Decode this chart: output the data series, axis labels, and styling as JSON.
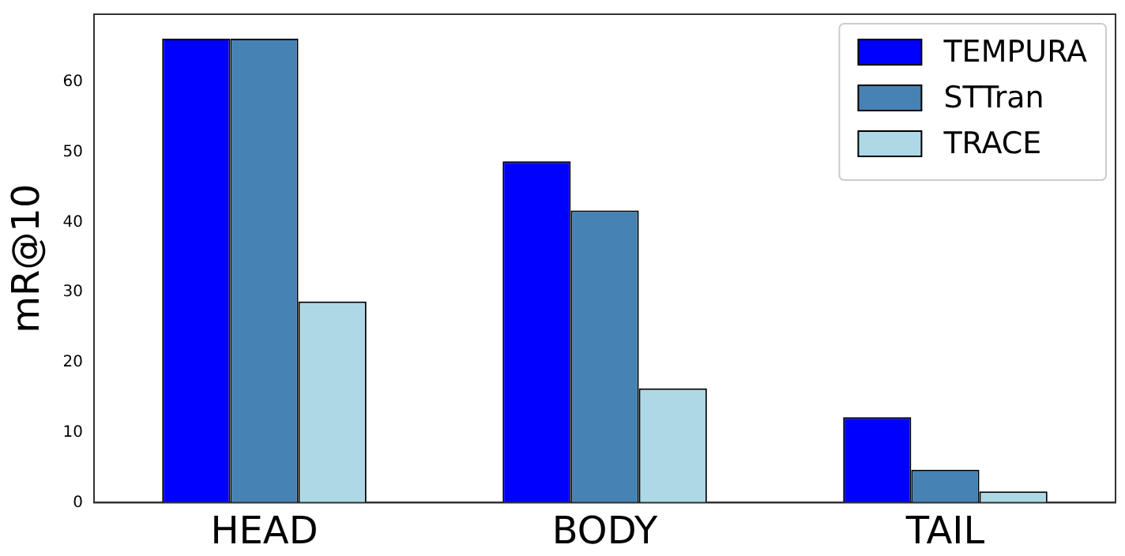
{
  "chart_data": {
    "type": "bar",
    "ylabel": "mR@10",
    "categories": [
      "HEAD",
      "BODY",
      "TAIL"
    ],
    "series": [
      {
        "name": "TEMPURA",
        "color": "#0000ff",
        "values": [
          66.2,
          48.7,
          12.2
        ]
      },
      {
        "name": "STTran",
        "color": "#4682b4",
        "values": [
          66.2,
          41.7,
          4.7
        ]
      },
      {
        "name": "TRACE",
        "color": "#add8e6",
        "values": [
          28.7,
          16.3,
          1.6
        ]
      }
    ],
    "ylim": [
      0,
      69.7
    ],
    "yticks": [
      0,
      10,
      20,
      30,
      40,
      50,
      60
    ],
    "grid": false,
    "legend": "top right"
  }
}
